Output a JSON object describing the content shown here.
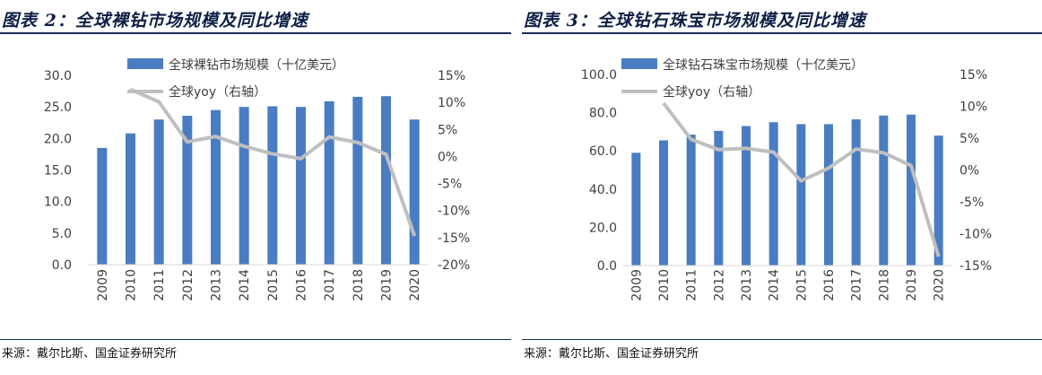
{
  "chart_data": [
    {
      "figure_title": "图表 2：全球裸钻市场规模及同比增速",
      "type": "bar",
      "categories": [
        "2009",
        "2010",
        "2011",
        "2012",
        "2013",
        "2014",
        "2015",
        "2016",
        "2017",
        "2018",
        "2019",
        "2020"
      ],
      "series": [
        {
          "name": "全球裸钻市场规模（十亿美元）",
          "type": "bar",
          "axis": "left",
          "values": [
            18.5,
            20.8,
            23.0,
            23.6,
            24.5,
            25.0,
            25.1,
            25.0,
            25.9,
            26.6,
            26.7,
            23.0
          ]
        },
        {
          "name": "全球yoy（右轴）",
          "type": "line",
          "axis": "right",
          "values": [
            null,
            12.4,
            10.1,
            2.7,
            3.7,
            1.9,
            0.5,
            -0.4,
            3.6,
            2.6,
            0.4,
            -14.7
          ]
        }
      ],
      "yleft": {
        "min": 0,
        "max": 30,
        "step": 5,
        "ticks": [
          "0.0",
          "5.0",
          "10.0",
          "15.0",
          "20.0",
          "25.0",
          "30.0"
        ]
      },
      "yright": {
        "min": -20,
        "max": 15,
        "step": 5,
        "ticks": [
          "-20%",
          "-15%",
          "-10%",
          "-5%",
          "0%",
          "5%",
          "10%",
          "15%"
        ]
      },
      "source": "来源：戴尔比斯、国金证券研究所",
      "colors": {
        "bar": "#4a7cc2",
        "line": "#bfbfbf"
      }
    },
    {
      "figure_title": "图表 3：全球钻石珠宝市场规模及同比增速",
      "type": "bar",
      "categories": [
        "2009",
        "2010",
        "2011",
        "2012",
        "2013",
        "2014",
        "2015",
        "2016",
        "2017",
        "2018",
        "2019",
        "2020"
      ],
      "series": [
        {
          "name": "全球钻石珠宝市场规模（十亿美元）",
          "type": "bar",
          "axis": "left",
          "values": [
            59.0,
            65.5,
            68.5,
            70.5,
            73.0,
            75.0,
            74.0,
            74.0,
            76.5,
            78.5,
            79.0,
            68.0
          ]
        },
        {
          "name": "全球yoy（右轴）",
          "type": "line",
          "axis": "right",
          "values": [
            null,
            10.5,
            4.8,
            3.2,
            3.4,
            2.8,
            -1.7,
            0.3,
            3.3,
            2.7,
            0.7,
            -13.6
          ]
        }
      ],
      "yleft": {
        "min": 0,
        "max": 100,
        "step": 20,
        "ticks": [
          "0.0",
          "20.0",
          "40.0",
          "60.0",
          "80.0",
          "100.0"
        ]
      },
      "yright": {
        "min": -15,
        "max": 15,
        "step": 5,
        "ticks": [
          "-15%",
          "-10%",
          "-5%",
          "0%",
          "5%",
          "10%",
          "15%"
        ]
      },
      "source": "来源：戴尔比斯、国金证券研究所",
      "colors": {
        "bar": "#4a7cc2",
        "line": "#bfbfbf"
      }
    }
  ]
}
